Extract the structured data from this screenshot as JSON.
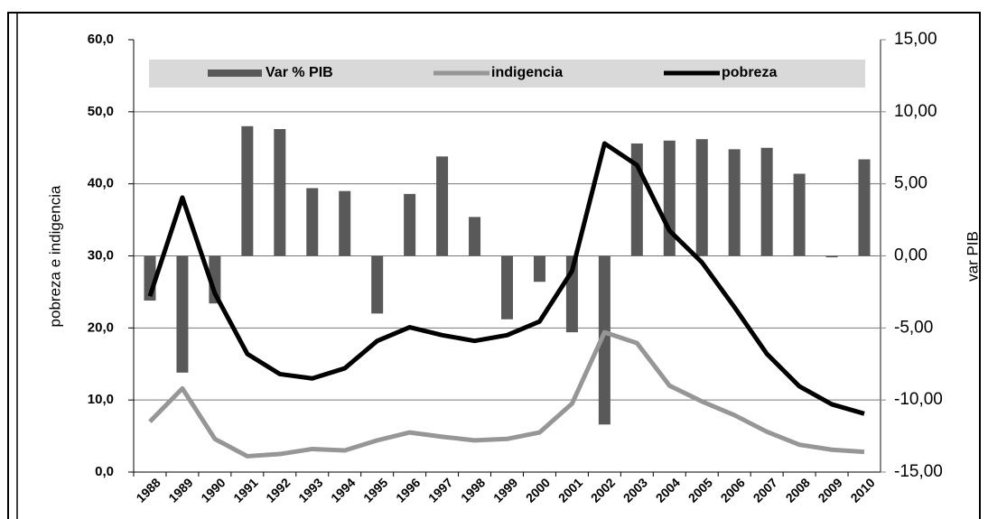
{
  "chart_data": {
    "type": "combo",
    "categories": [
      "1988",
      "1989",
      "1990",
      "1991",
      "1992",
      "1993",
      "1994",
      "1995",
      "1996",
      "1997",
      "1998",
      "1999",
      "2000",
      "2001",
      "2002",
      "2003",
      "2004",
      "2005",
      "2006",
      "2007",
      "2008",
      "2009",
      "2010"
    ],
    "series": [
      {
        "name": "Var % PIB",
        "type": "bar",
        "axis": "y2",
        "color": "#595959",
        "values": [
          -3.1,
          -8.1,
          -3.3,
          9.0,
          8.8,
          4.7,
          4.5,
          -4.0,
          4.3,
          6.9,
          2.7,
          -4.4,
          -1.8,
          -5.3,
          -11.7,
          7.8,
          8.0,
          8.1,
          7.4,
          7.5,
          5.7,
          -0.1,
          6.7
        ]
      },
      {
        "name": "indigencia",
        "type": "line",
        "color": "#969696",
        "values": [
          7.0,
          11.6,
          4.6,
          2.2,
          2.5,
          3.2,
          3.0,
          4.4,
          5.5,
          4.9,
          4.4,
          4.6,
          5.5,
          9.5,
          19.4,
          17.9,
          12.0,
          9.8,
          7.9,
          5.6,
          3.8,
          3.1,
          2.8
        ]
      },
      {
        "name": "pobreza",
        "type": "line",
        "color": "#000000",
        "values": [
          24.4,
          38.1,
          24.8,
          16.4,
          13.6,
          13.0,
          14.4,
          18.2,
          20.1,
          19.0,
          18.2,
          19.0,
          20.9,
          27.9,
          45.6,
          42.6,
          33.5,
          29.1,
          22.9,
          16.4,
          11.9,
          9.4,
          8.1
        ]
      }
    ],
    "ylabel": "pobreza e indigencia",
    "y2label": "var  PIB",
    "ylim": [
      0,
      60
    ],
    "yticks": [
      {
        "value": 0,
        "label": "0,0"
      },
      {
        "value": 10,
        "label": "10,0"
      },
      {
        "value": 20,
        "label": "20,0"
      },
      {
        "value": 30,
        "label": "30,0"
      },
      {
        "value": 40,
        "label": "40,0"
      },
      {
        "value": 50,
        "label": "50,0"
      },
      {
        "value": 60,
        "label": "60,0"
      }
    ],
    "y2lim": [
      -15,
      15
    ],
    "y2ticks": [
      {
        "value": -15,
        "label": "-15,00"
      },
      {
        "value": -10,
        "label": "-10,00"
      },
      {
        "value": -5,
        "label": "-5,00"
      },
      {
        "value": 0,
        "label": "0,00"
      },
      {
        "value": 5,
        "label": "5,00"
      },
      {
        "value": 10,
        "label": "10,00"
      },
      {
        "value": 15,
        "label": "15,00"
      }
    ],
    "grid": true,
    "legend": "top"
  }
}
